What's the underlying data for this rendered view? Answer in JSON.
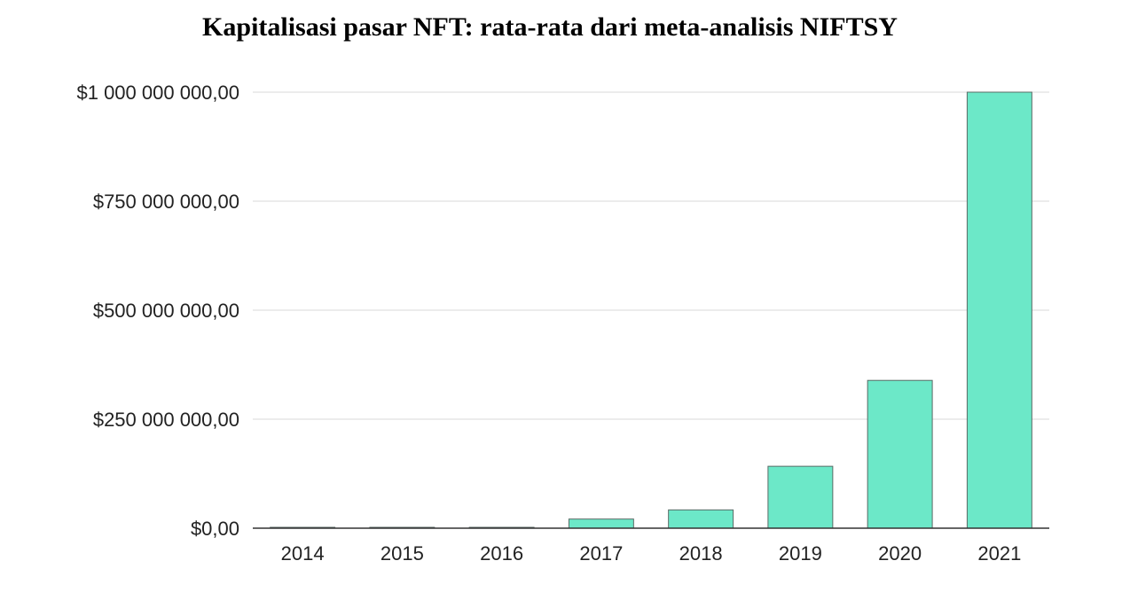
{
  "chart_data": {
    "type": "bar",
    "title": "Kapitalisasi pasar NFT: rata-rata dari meta-analisis NIFTSY",
    "xlabel": "",
    "ylabel": "",
    "categories": [
      "2014",
      "2015",
      "2016",
      "2017",
      "2018",
      "2019",
      "2020",
      "2021"
    ],
    "series": [
      {
        "values": [
          1000000,
          1000000,
          1000000,
          21000000,
          42000000,
          142000000,
          339000000,
          1000000000
        ]
      }
    ],
    "ylim": [
      0,
      1000000000
    ],
    "yticks": [
      0,
      250000000,
      500000000,
      750000000,
      1000000000
    ],
    "ytick_labels": [
      "$0,00",
      "$250 000 000,00",
      "$500 000 000,00",
      "$750 000 000,00",
      "$1 000 000 000,00"
    ],
    "grid": true,
    "legend": "none",
    "colors": {
      "bar_fill": "#6ce8c8",
      "bar_stroke": "#5a6b66",
      "grid": "#d9d9d9",
      "axis": "#333333"
    }
  }
}
